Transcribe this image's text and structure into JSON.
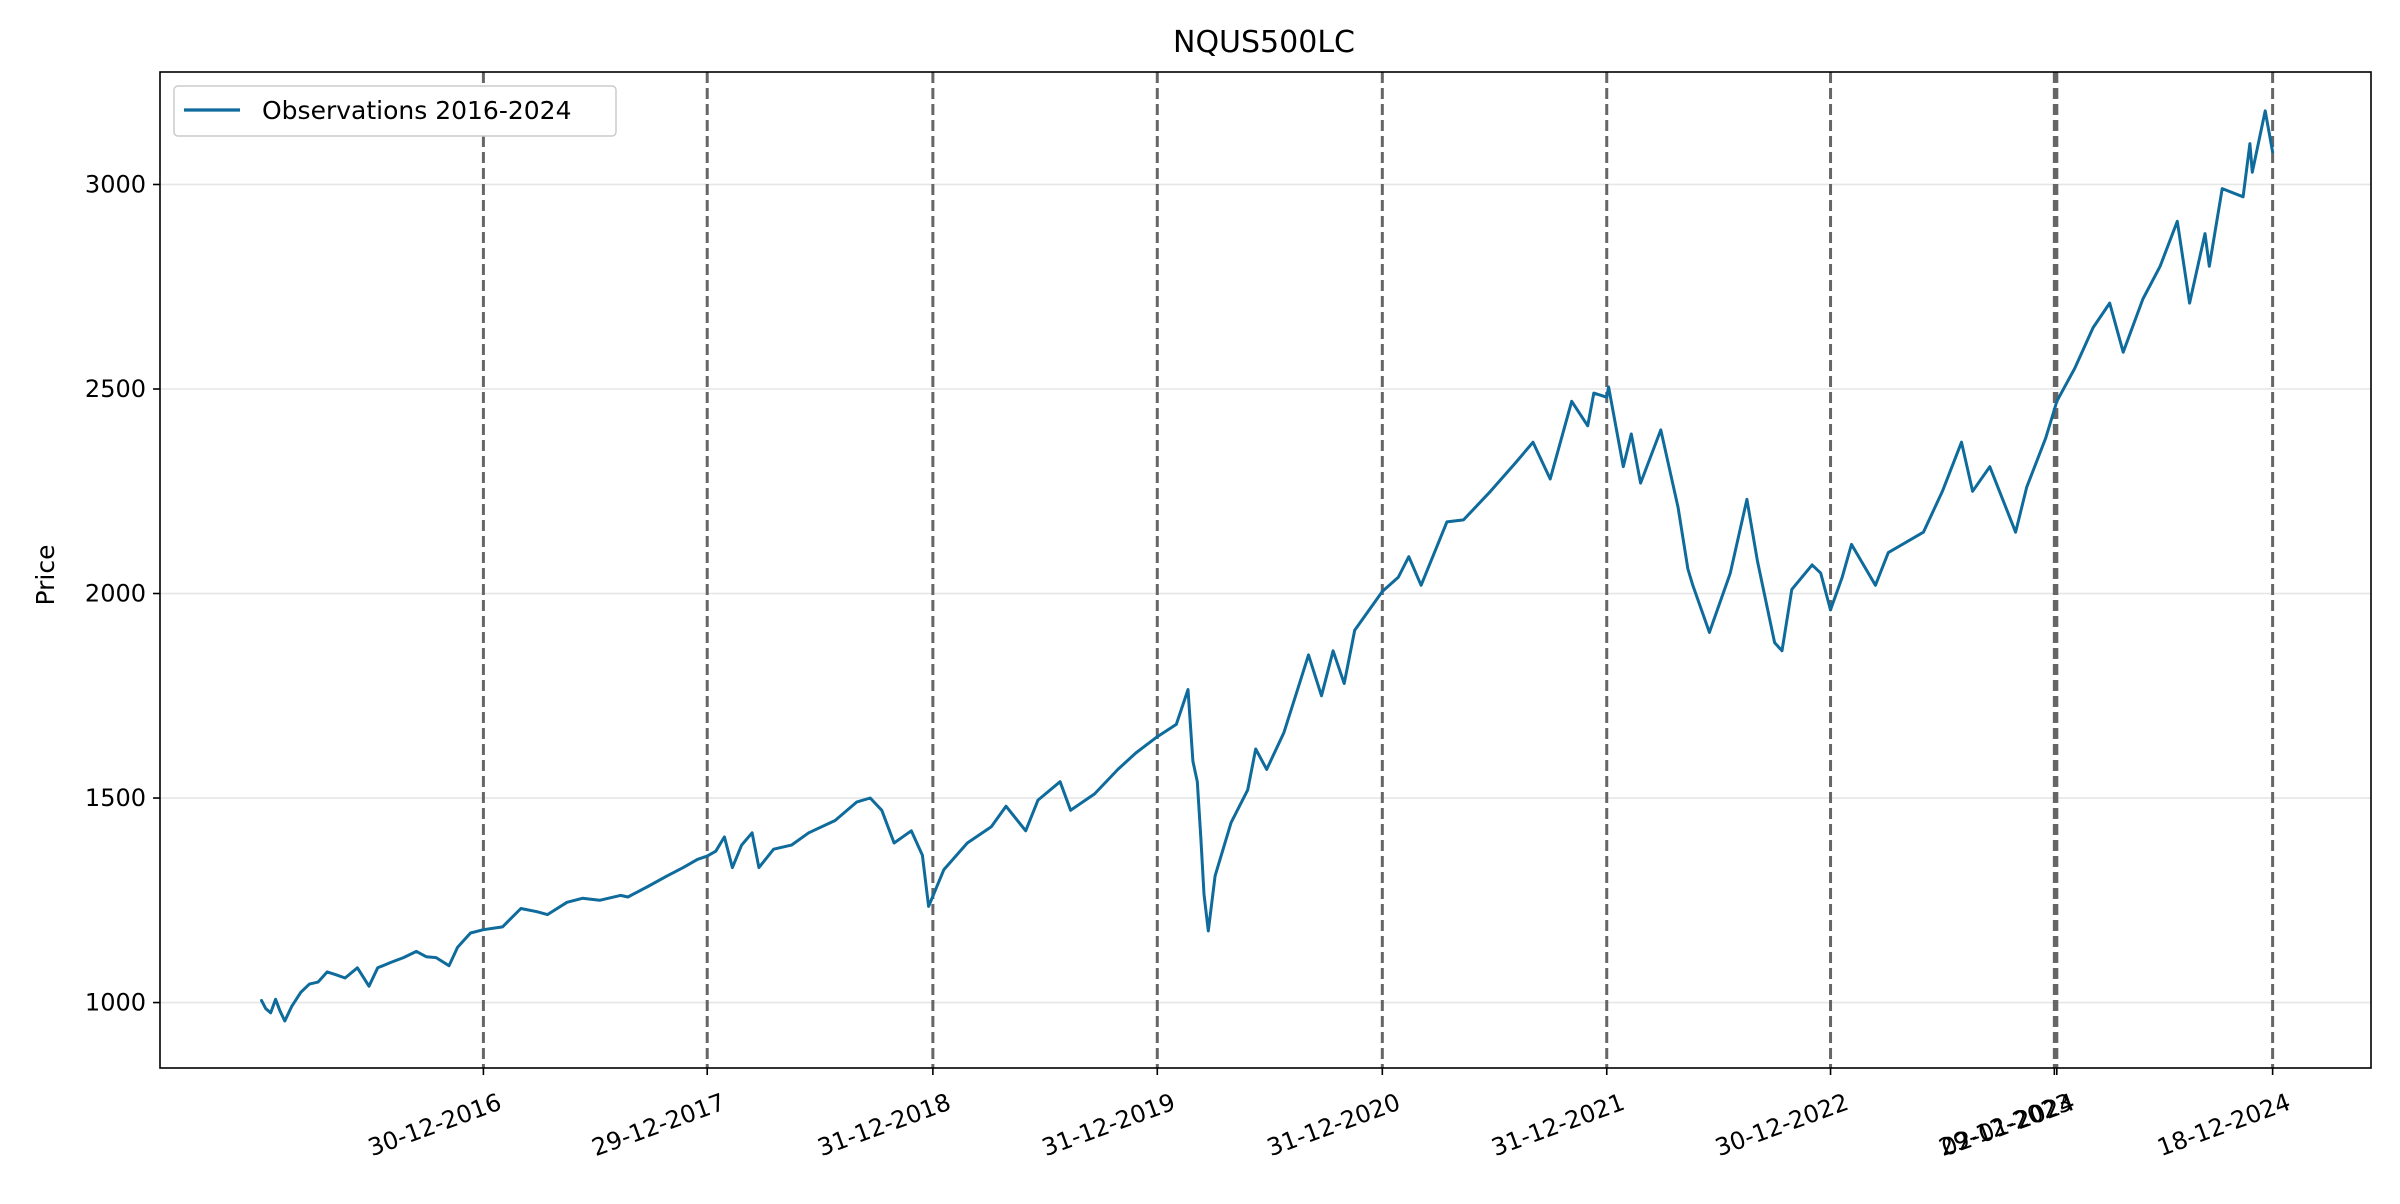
{
  "chart_data": {
    "type": "line",
    "title": "NQUS500LC",
    "xlabel": "",
    "ylabel": "Price",
    "x_axis_type": "date",
    "xlim": [
      "2015-07-23",
      "2025-05-27"
    ],
    "ylim": [
      840,
      3275
    ],
    "yticks": [
      1000,
      1500,
      2000,
      2500,
      3000
    ],
    "grid": "horizontal",
    "legend": {
      "placement": "top-left",
      "entries": [
        "Observations 2016-2024"
      ]
    },
    "colors": {
      "series": "#0e6b9c",
      "vlines": "#666666",
      "grid": "#e6e6e6"
    },
    "vertical_lines": [
      {
        "date": "2016-12-30",
        "label": "30-12-2016"
      },
      {
        "date": "2017-12-29",
        "label": "29-12-2017"
      },
      {
        "date": "2018-12-31",
        "label": "31-12-2018"
      },
      {
        "date": "2019-12-31",
        "label": "31-12-2019"
      },
      {
        "date": "2020-12-31",
        "label": "31-12-2020"
      },
      {
        "date": "2021-12-31",
        "label": "31-12-2021"
      },
      {
        "date": "2022-12-30",
        "label": "30-12-2022"
      },
      {
        "date": "2023-12-29",
        "label": "29-12-2023"
      },
      {
        "date": "2024-01-02",
        "label": "02-01-2024"
      },
      {
        "date": "2024-12-18",
        "label": "18-12-2024"
      }
    ],
    "series": [
      {
        "name": "Observations 2016-2024",
        "points": [
          [
            "2016-01-04",
            1005
          ],
          [
            "2016-01-11",
            985
          ],
          [
            "2016-01-19",
            975
          ],
          [
            "2016-01-27",
            1008
          ],
          [
            "2016-02-03",
            980
          ],
          [
            "2016-02-11",
            955
          ],
          [
            "2016-02-22",
            990
          ],
          [
            "2016-03-08",
            1025
          ],
          [
            "2016-03-22",
            1045
          ],
          [
            "2016-04-05",
            1050
          ],
          [
            "2016-04-20",
            1075
          ],
          [
            "2016-05-04",
            1068
          ],
          [
            "2016-05-19",
            1060
          ],
          [
            "2016-06-08",
            1085
          ],
          [
            "2016-06-27",
            1040
          ],
          [
            "2016-07-11",
            1085
          ],
          [
            "2016-08-01",
            1098
          ],
          [
            "2016-08-22",
            1110
          ],
          [
            "2016-09-12",
            1125
          ],
          [
            "2016-09-28",
            1112
          ],
          [
            "2016-10-14",
            1110
          ],
          [
            "2016-11-04",
            1090
          ],
          [
            "2016-11-18",
            1135
          ],
          [
            "2016-12-09",
            1170
          ],
          [
            "2016-12-30",
            1178
          ],
          [
            "2017-01-30",
            1185
          ],
          [
            "2017-03-01",
            1230
          ],
          [
            "2017-03-27",
            1222
          ],
          [
            "2017-04-13",
            1215
          ],
          [
            "2017-05-15",
            1245
          ],
          [
            "2017-06-09",
            1255
          ],
          [
            "2017-07-07",
            1250
          ],
          [
            "2017-08-10",
            1262
          ],
          [
            "2017-08-22",
            1258
          ],
          [
            "2017-09-25",
            1285
          ],
          [
            "2017-10-25",
            1310
          ],
          [
            "2017-11-20",
            1330
          ],
          [
            "2017-12-13",
            1350
          ],
          [
            "2017-12-29",
            1358
          ],
          [
            "2018-01-12",
            1370
          ],
          [
            "2018-01-26",
            1405
          ],
          [
            "2018-02-08",
            1330
          ],
          [
            "2018-02-23",
            1385
          ],
          [
            "2018-03-12",
            1415
          ],
          [
            "2018-03-23",
            1330
          ],
          [
            "2018-04-16",
            1375
          ],
          [
            "2018-05-15",
            1385
          ],
          [
            "2018-06-12",
            1415
          ],
          [
            "2018-07-25",
            1445
          ],
          [
            "2018-08-29",
            1490
          ],
          [
            "2018-09-20",
            1500
          ],
          [
            "2018-10-09",
            1470
          ],
          [
            "2018-10-29",
            1390
          ],
          [
            "2018-11-26",
            1420
          ],
          [
            "2018-12-14",
            1360
          ],
          [
            "2018-12-24",
            1235
          ],
          [
            "2019-01-18",
            1325
          ],
          [
            "2019-02-25",
            1390
          ],
          [
            "2019-04-05",
            1430
          ],
          [
            "2019-04-29",
            1480
          ],
          [
            "2019-05-31",
            1420
          ],
          [
            "2019-06-20",
            1495
          ],
          [
            "2019-07-26",
            1540
          ],
          [
            "2019-08-12",
            1470
          ],
          [
            "2019-09-20",
            1510
          ],
          [
            "2019-10-28",
            1570
          ],
          [
            "2019-11-26",
            1610
          ],
          [
            "2019-12-31",
            1650
          ],
          [
            "2020-01-31",
            1680
          ],
          [
            "2020-02-19",
            1765
          ],
          [
            "2020-02-27",
            1590
          ],
          [
            "2020-03-05",
            1540
          ],
          [
            "2020-03-11",
            1400
          ],
          [
            "2020-03-16",
            1265
          ],
          [
            "2020-03-23",
            1175
          ],
          [
            "2020-04-03",
            1310
          ],
          [
            "2020-04-29",
            1440
          ],
          [
            "2020-05-26",
            1520
          ],
          [
            "2020-06-08",
            1620
          ],
          [
            "2020-06-26",
            1570
          ],
          [
            "2020-07-24",
            1660
          ],
          [
            "2020-08-14",
            1760
          ],
          [
            "2020-09-02",
            1850
          ],
          [
            "2020-09-23",
            1750
          ],
          [
            "2020-10-12",
            1860
          ],
          [
            "2020-10-30",
            1780
          ],
          [
            "2020-11-16",
            1910
          ],
          [
            "2020-12-31",
            2005
          ],
          [
            "2021-01-26",
            2040
          ],
          [
            "2021-02-12",
            2090
          ],
          [
            "2021-03-04",
            2020
          ],
          [
            "2021-04-15",
            2175
          ],
          [
            "2021-05-12",
            2180
          ],
          [
            "2021-06-25",
            2250
          ],
          [
            "2021-08-05",
            2320
          ],
          [
            "2021-09-02",
            2370
          ],
          [
            "2021-09-30",
            2280
          ],
          [
            "2021-11-04",
            2470
          ],
          [
            "2021-11-30",
            2410
          ],
          [
            "2021-12-10",
            2490
          ],
          [
            "2021-12-31",
            2480
          ],
          [
            "2022-01-03",
            2505
          ],
          [
            "2022-01-27",
            2310
          ],
          [
            "2022-02-09",
            2390
          ],
          [
            "2022-02-24",
            2270
          ],
          [
            "2022-03-29",
            2400
          ],
          [
            "2022-04-26",
            2210
          ],
          [
            "2022-05-12",
            2060
          ],
          [
            "2022-05-20",
            2020
          ],
          [
            "2022-06-16",
            1905
          ],
          [
            "2022-07-20",
            2050
          ],
          [
            "2022-08-16",
            2230
          ],
          [
            "2022-09-02",
            2080
          ],
          [
            "2022-09-30",
            1880
          ],
          [
            "2022-10-12",
            1860
          ],
          [
            "2022-10-28",
            2010
          ],
          [
            "2022-11-30",
            2070
          ],
          [
            "2022-12-14",
            2050
          ],
          [
            "2022-12-30",
            1960
          ],
          [
            "2023-01-18",
            2040
          ],
          [
            "2023-02-02",
            2120
          ],
          [
            "2023-03-13",
            2020
          ],
          [
            "2023-04-03",
            2100
          ],
          [
            "2023-05-30",
            2150
          ],
          [
            "2023-06-30",
            2250
          ],
          [
            "2023-07-31",
            2370
          ],
          [
            "2023-08-18",
            2250
          ],
          [
            "2023-09-15",
            2310
          ],
          [
            "2023-10-27",
            2150
          ],
          [
            "2023-11-14",
            2260
          ],
          [
            "2023-12-15",
            2380
          ],
          [
            "2023-12-29",
            2450
          ],
          [
            "2024-01-02",
            2470
          ],
          [
            "2024-01-31",
            2550
          ],
          [
            "2024-03-01",
            2650
          ],
          [
            "2024-03-28",
            2710
          ],
          [
            "2024-04-19",
            2590
          ],
          [
            "2024-05-21",
            2720
          ],
          [
            "2024-06-18",
            2800
          ],
          [
            "2024-07-16",
            2910
          ],
          [
            "2024-08-05",
            2710
          ],
          [
            "2024-08-30",
            2880
          ],
          [
            "2024-09-06",
            2800
          ],
          [
            "2024-09-27",
            2990
          ],
          [
            "2024-10-31",
            2970
          ],
          [
            "2024-11-11",
            3100
          ],
          [
            "2024-11-15",
            3030
          ],
          [
            "2024-12-06",
            3180
          ],
          [
            "2024-12-18",
            3080
          ]
        ]
      }
    ]
  }
}
